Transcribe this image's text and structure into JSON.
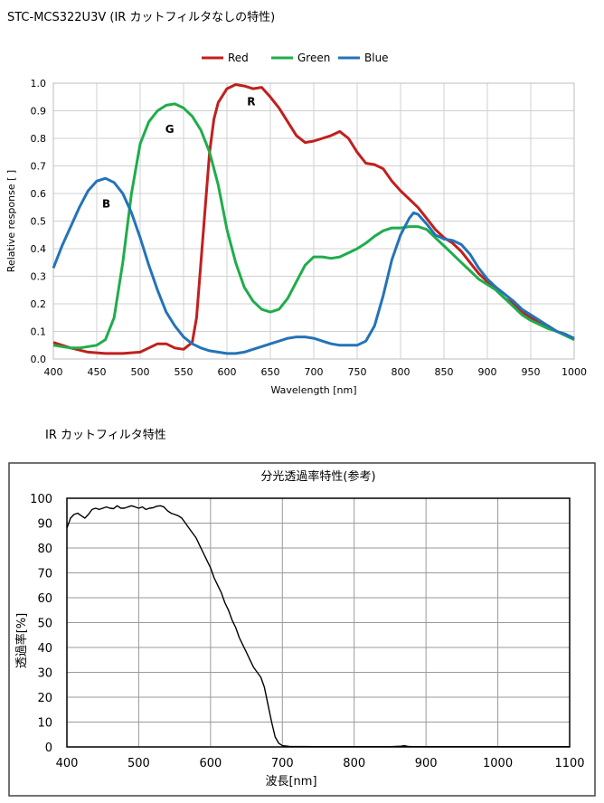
{
  "headings": {
    "main": "STC-MCS322U3V (IR カットフィルタなしの特性)",
    "filter": "IR カットフィルタ特性"
  },
  "chart_data": [
    {
      "type": "line",
      "title": "",
      "xlabel": "Wavelength [nm]",
      "ylabel": "Relative response [ ]",
      "xlim": [
        400,
        1000
      ],
      "ylim": [
        0,
        1.0
      ],
      "x_ticks": [
        "400",
        "450",
        "500",
        "550",
        "600",
        "650",
        "700",
        "750",
        "800",
        "850",
        "900",
        "950",
        "1000"
      ],
      "y_ticks": [
        "0.0",
        "0.1",
        "0.2",
        "0.3",
        "0.4",
        "0.5",
        "0.6",
        "0.7",
        "0.8",
        "0.9",
        "1.0"
      ],
      "grid": true,
      "legend_position": "top",
      "series": [
        {
          "name": "Red",
          "color": "#c0201e",
          "label": "R",
          "label_at": [
            628,
            0.92
          ],
          "points": [
            [
              400,
              0.06
            ],
            [
              420,
              0.04
            ],
            [
              440,
              0.025
            ],
            [
              460,
              0.02
            ],
            [
              480,
              0.02
            ],
            [
              500,
              0.025
            ],
            [
              510,
              0.04
            ],
            [
              520,
              0.055
            ],
            [
              530,
              0.055
            ],
            [
              540,
              0.04
            ],
            [
              550,
              0.035
            ],
            [
              560,
              0.06
            ],
            [
              565,
              0.15
            ],
            [
              570,
              0.35
            ],
            [
              575,
              0.55
            ],
            [
              580,
              0.75
            ],
            [
              585,
              0.87
            ],
            [
              590,
              0.93
            ],
            [
              600,
              0.98
            ],
            [
              610,
              0.995
            ],
            [
              620,
              0.99
            ],
            [
              630,
              0.98
            ],
            [
              640,
              0.985
            ],
            [
              650,
              0.95
            ],
            [
              660,
              0.91
            ],
            [
              670,
              0.86
            ],
            [
              680,
              0.81
            ],
            [
              690,
              0.785
            ],
            [
              700,
              0.79
            ],
            [
              710,
              0.8
            ],
            [
              720,
              0.81
            ],
            [
              730,
              0.825
            ],
            [
              740,
              0.8
            ],
            [
              750,
              0.75
            ],
            [
              760,
              0.71
            ],
            [
              770,
              0.705
            ],
            [
              780,
              0.69
            ],
            [
              790,
              0.645
            ],
            [
              800,
              0.61
            ],
            [
              810,
              0.58
            ],
            [
              820,
              0.55
            ],
            [
              830,
              0.51
            ],
            [
              840,
              0.47
            ],
            [
              850,
              0.44
            ],
            [
              860,
              0.42
            ],
            [
              870,
              0.39
            ],
            [
              880,
              0.35
            ],
            [
              890,
              0.31
            ],
            [
              900,
              0.28
            ],
            [
              910,
              0.25
            ],
            [
              920,
              0.22
            ],
            [
              930,
              0.2
            ],
            [
              940,
              0.17
            ],
            [
              950,
              0.15
            ],
            [
              960,
              0.13
            ],
            [
              970,
              0.12
            ],
            [
              980,
              0.1
            ],
            [
              990,
              0.09
            ],
            [
              1000,
              0.07
            ]
          ]
        },
        {
          "name": "Green",
          "color": "#1fad4b",
          "label": "G",
          "label_at": [
            534,
            0.82
          ],
          "points": [
            [
              400,
              0.05
            ],
            [
              410,
              0.045
            ],
            [
              420,
              0.04
            ],
            [
              430,
              0.04
            ],
            [
              440,
              0.045
            ],
            [
              450,
              0.05
            ],
            [
              460,
              0.07
            ],
            [
              470,
              0.15
            ],
            [
              480,
              0.35
            ],
            [
              490,
              0.6
            ],
            [
              500,
              0.78
            ],
            [
              510,
              0.86
            ],
            [
              520,
              0.9
            ],
            [
              530,
              0.92
            ],
            [
              540,
              0.925
            ],
            [
              550,
              0.91
            ],
            [
              560,
              0.88
            ],
            [
              570,
              0.83
            ],
            [
              580,
              0.75
            ],
            [
              590,
              0.63
            ],
            [
              600,
              0.47
            ],
            [
              610,
              0.35
            ],
            [
              620,
              0.26
            ],
            [
              630,
              0.21
            ],
            [
              640,
              0.18
            ],
            [
              650,
              0.17
            ],
            [
              660,
              0.18
            ],
            [
              670,
              0.22
            ],
            [
              680,
              0.28
            ],
            [
              690,
              0.34
            ],
            [
              700,
              0.37
            ],
            [
              710,
              0.37
            ],
            [
              720,
              0.365
            ],
            [
              730,
              0.37
            ],
            [
              740,
              0.385
            ],
            [
              750,
              0.4
            ],
            [
              760,
              0.42
            ],
            [
              770,
              0.445
            ],
            [
              780,
              0.465
            ],
            [
              790,
              0.475
            ],
            [
              800,
              0.475
            ],
            [
              810,
              0.48
            ],
            [
              820,
              0.48
            ],
            [
              830,
              0.47
            ],
            [
              840,
              0.44
            ],
            [
              850,
              0.41
            ],
            [
              860,
              0.38
            ],
            [
              870,
              0.35
            ],
            [
              880,
              0.32
            ],
            [
              890,
              0.29
            ],
            [
              900,
              0.27
            ],
            [
              910,
              0.25
            ],
            [
              920,
              0.22
            ],
            [
              930,
              0.19
            ],
            [
              940,
              0.16
            ],
            [
              950,
              0.14
            ],
            [
              960,
              0.125
            ],
            [
              970,
              0.11
            ],
            [
              980,
              0.1
            ],
            [
              990,
              0.085
            ],
            [
              1000,
              0.07
            ]
          ]
        },
        {
          "name": "Blue",
          "color": "#2473b8",
          "label": "B",
          "label_at": [
            461,
            0.55
          ],
          "points": [
            [
              400,
              0.33
            ],
            [
              410,
              0.41
            ],
            [
              420,
              0.48
            ],
            [
              430,
              0.55
            ],
            [
              440,
              0.61
            ],
            [
              450,
              0.645
            ],
            [
              460,
              0.655
            ],
            [
              470,
              0.64
            ],
            [
              480,
              0.6
            ],
            [
              490,
              0.53
            ],
            [
              500,
              0.44
            ],
            [
              510,
              0.34
            ],
            [
              520,
              0.25
            ],
            [
              530,
              0.17
            ],
            [
              540,
              0.12
            ],
            [
              550,
              0.08
            ],
            [
              560,
              0.055
            ],
            [
              570,
              0.04
            ],
            [
              580,
              0.03
            ],
            [
              590,
              0.025
            ],
            [
              600,
              0.02
            ],
            [
              610,
              0.02
            ],
            [
              620,
              0.025
            ],
            [
              630,
              0.035
            ],
            [
              640,
              0.045
            ],
            [
              650,
              0.055
            ],
            [
              660,
              0.065
            ],
            [
              670,
              0.075
            ],
            [
              680,
              0.08
            ],
            [
              690,
              0.08
            ],
            [
              700,
              0.075
            ],
            [
              710,
              0.065
            ],
            [
              720,
              0.055
            ],
            [
              730,
              0.05
            ],
            [
              740,
              0.05
            ],
            [
              750,
              0.05
            ],
            [
              760,
              0.065
            ],
            [
              770,
              0.12
            ],
            [
              780,
              0.23
            ],
            [
              790,
              0.36
            ],
            [
              800,
              0.45
            ],
            [
              810,
              0.51
            ],
            [
              815,
              0.53
            ],
            [
              820,
              0.525
            ],
            [
              830,
              0.49
            ],
            [
              840,
              0.45
            ],
            [
              850,
              0.435
            ],
            [
              860,
              0.43
            ],
            [
              870,
              0.415
            ],
            [
              880,
              0.38
            ],
            [
              890,
              0.33
            ],
            [
              900,
              0.29
            ],
            [
              910,
              0.26
            ],
            [
              920,
              0.235
            ],
            [
              930,
              0.21
            ],
            [
              940,
              0.18
            ],
            [
              950,
              0.16
            ],
            [
              960,
              0.14
            ],
            [
              970,
              0.12
            ],
            [
              980,
              0.1
            ],
            [
              990,
              0.09
            ],
            [
              1000,
              0.075
            ]
          ]
        }
      ]
    },
    {
      "type": "line",
      "title": "分光透過率特性(参考)",
      "xlabel": "波長[nm]",
      "ylabel": "透過率[%]",
      "xlim": [
        400,
        1100
      ],
      "ylim": [
        0,
        100
      ],
      "x_ticks": [
        "400",
        "500",
        "600",
        "700",
        "800",
        "900",
        "1000",
        "1100"
      ],
      "y_ticks": [
        "0",
        "10",
        "20",
        "30",
        "40",
        "50",
        "60",
        "70",
        "80",
        "90",
        "100"
      ],
      "grid": true,
      "series": [
        {
          "color": "#000000",
          "points": [
            [
              400,
              88
            ],
            [
              405,
              92
            ],
            [
              410,
              93.5
            ],
            [
              415,
              94
            ],
            [
              420,
              93
            ],
            [
              425,
              92
            ],
            [
              430,
              93.5
            ],
            [
              435,
              95.5
            ],
            [
              440,
              96
            ],
            [
              445,
              95.5
            ],
            [
              450,
              96
            ],
            [
              455,
              96.5
            ],
            [
              460,
              96
            ],
            [
              465,
              95.8
            ],
            [
              470,
              97
            ],
            [
              475,
              96
            ],
            [
              480,
              96
            ],
            [
              485,
              96.5
            ],
            [
              490,
              97
            ],
            [
              495,
              96.5
            ],
            [
              500,
              96
            ],
            [
              505,
              96.5
            ],
            [
              510,
              95.5
            ],
            [
              515,
              96
            ],
            [
              520,
              96.2
            ],
            [
              525,
              96.8
            ],
            [
              530,
              97
            ],
            [
              535,
              96.5
            ],
            [
              540,
              95
            ],
            [
              545,
              94
            ],
            [
              550,
              93.5
            ],
            [
              555,
              93
            ],
            [
              560,
              92
            ],
            [
              565,
              90
            ],
            [
              570,
              88
            ],
            [
              575,
              86
            ],
            [
              580,
              84
            ],
            [
              585,
              81
            ],
            [
              590,
              78
            ],
            [
              595,
              75
            ],
            [
              600,
              72
            ],
            [
              605,
              68
            ],
            [
              610,
              65
            ],
            [
              615,
              62
            ],
            [
              620,
              58
            ],
            [
              625,
              55
            ],
            [
              630,
              51
            ],
            [
              635,
              48
            ],
            [
              640,
              44
            ],
            [
              645,
              41
            ],
            [
              650,
              38
            ],
            [
              655,
              35
            ],
            [
              660,
              32
            ],
            [
              665,
              30
            ],
            [
              670,
              28
            ],
            [
              675,
              24
            ],
            [
              680,
              17
            ],
            [
              685,
              10
            ],
            [
              690,
              4
            ],
            [
              695,
              1.5
            ],
            [
              700,
              0.5
            ],
            [
              710,
              0.2
            ],
            [
              750,
              0.1
            ],
            [
              800,
              0.1
            ],
            [
              850,
              0.1
            ],
            [
              865,
              0.3
            ],
            [
              870,
              0.5
            ],
            [
              875,
              0.2
            ],
            [
              880,
              0.1
            ],
            [
              900,
              0.1
            ],
            [
              950,
              0.1
            ],
            [
              1000,
              0.1
            ],
            [
              1050,
              0.1
            ],
            [
              1100,
              0.1
            ]
          ]
        }
      ]
    }
  ]
}
